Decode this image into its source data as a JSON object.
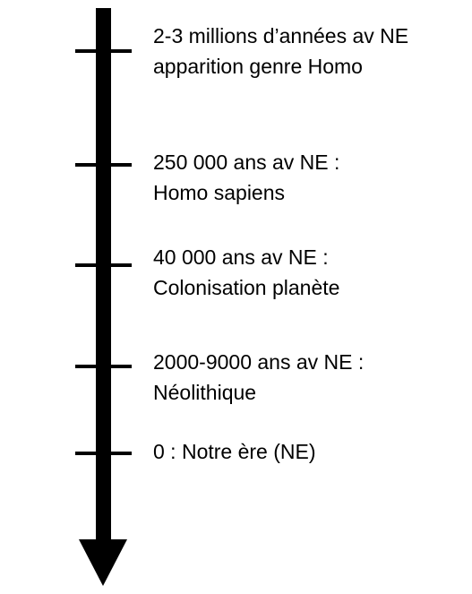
{
  "timeline": {
    "events": [
      {
        "line1": "2-3 millions d’années av NE",
        "line2": "apparition genre Homo"
      },
      {
        "line1": "250 000 ans av NE :",
        "line2": "Homo sapiens"
      },
      {
        "line1": "40 000 ans av NE :",
        "line2": "Colonisation planète"
      },
      {
        "line1": "2000-9000 ans av NE :",
        "line2": "Néolithique"
      },
      {
        "line1": "0 : Notre ère (NE)",
        "line2": ""
      }
    ],
    "color": "#000000"
  }
}
